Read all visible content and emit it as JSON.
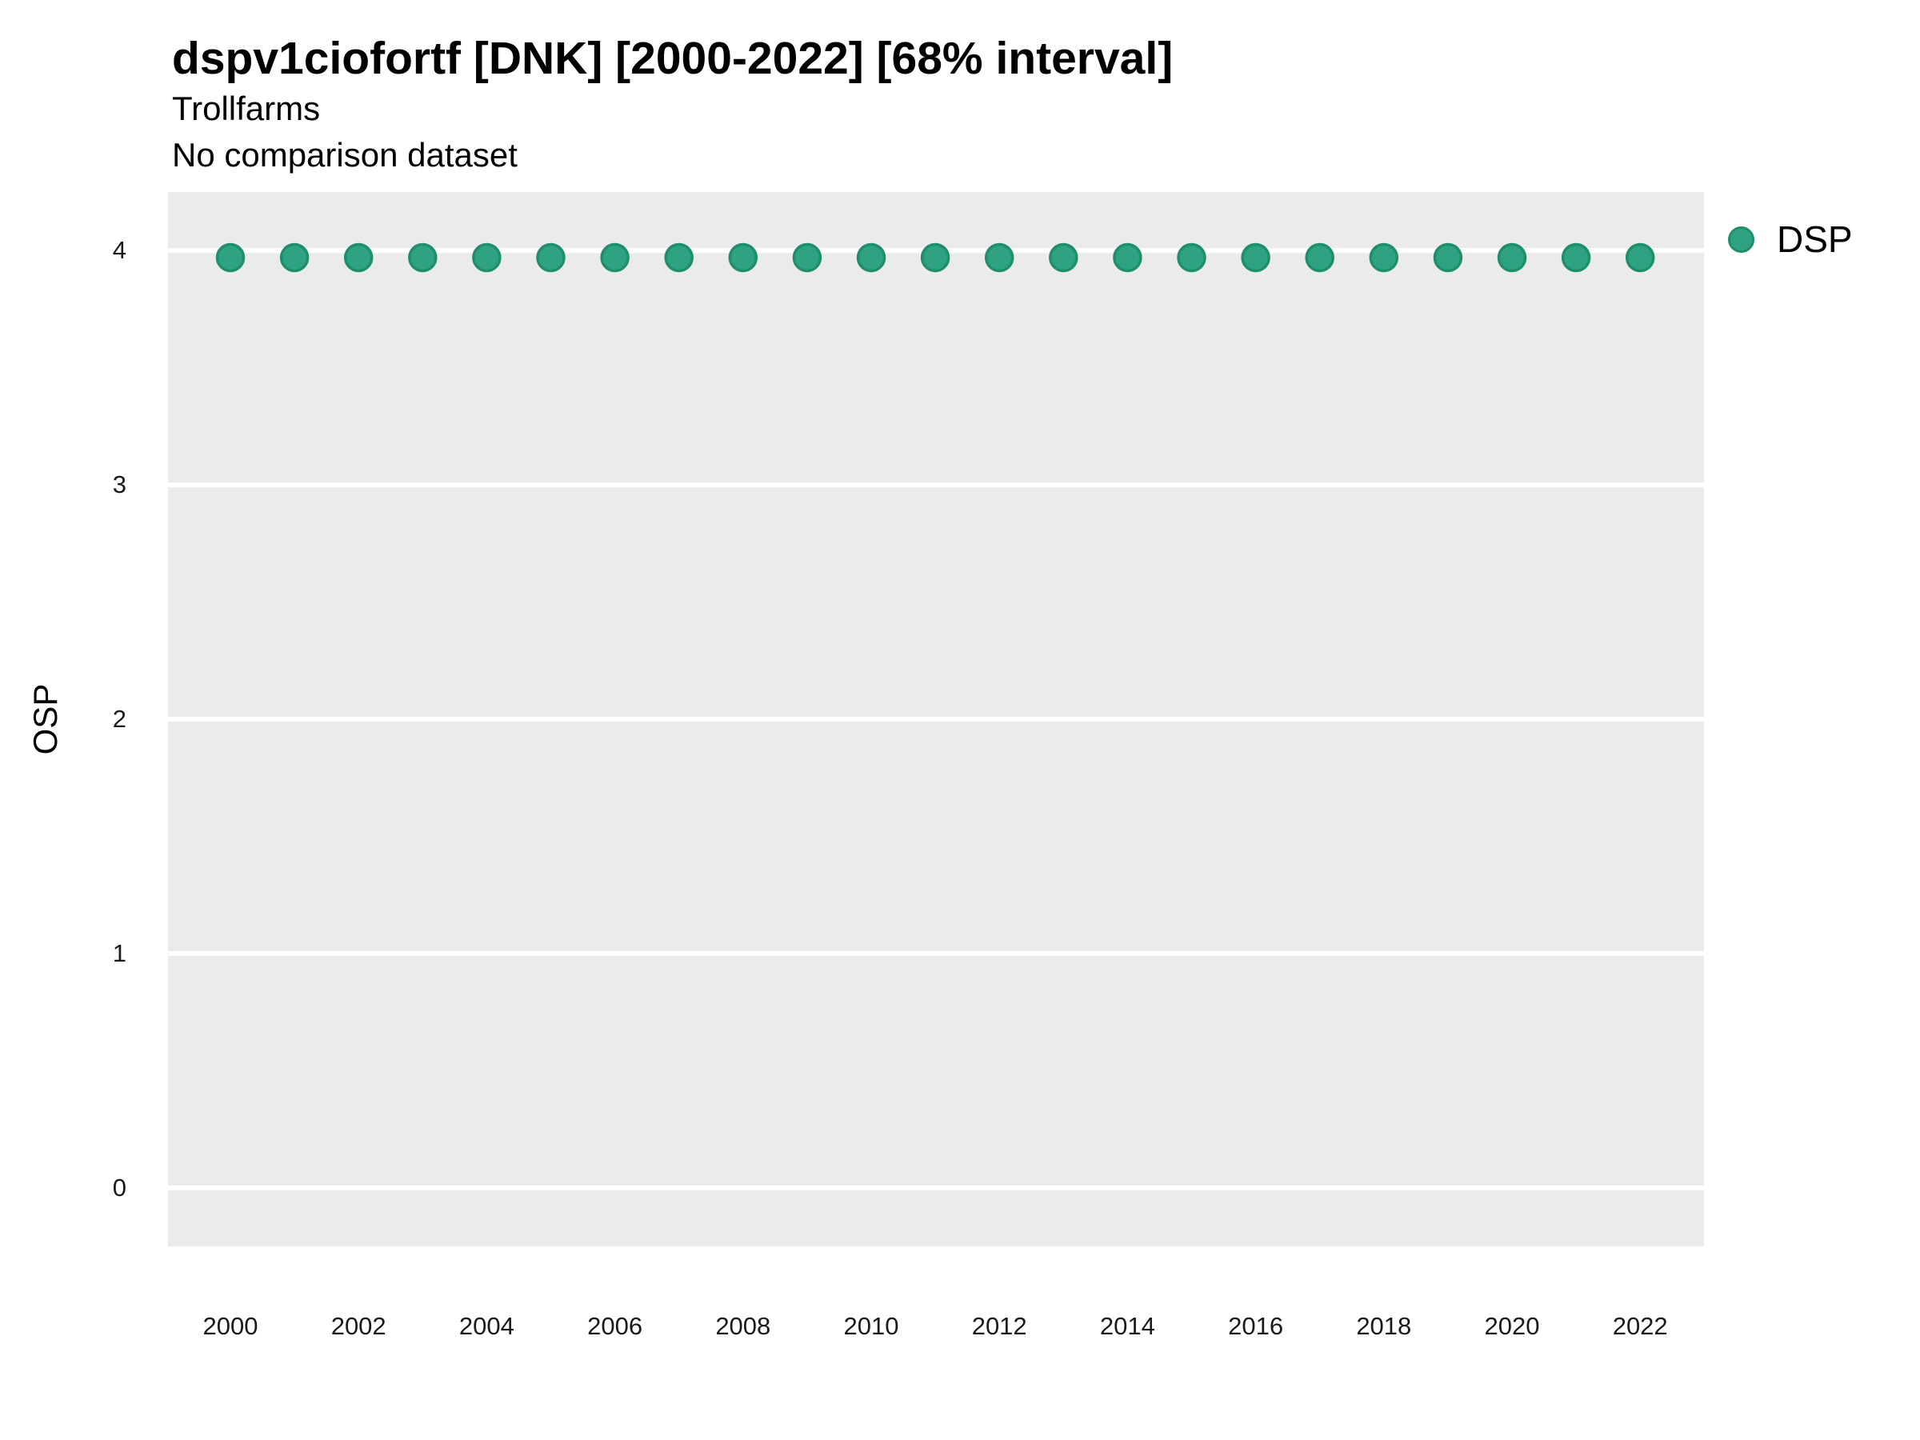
{
  "chart_data": {
    "type": "scatter",
    "title": "dspv1ciofortf [DNK] [2000-2022] [68% interval]",
    "subtitle": "Trollfarms",
    "note": "No comparison dataset",
    "xlabel": "",
    "ylabel": "OSP",
    "x": [
      2000,
      2001,
      2002,
      2003,
      2004,
      2005,
      2006,
      2007,
      2008,
      2009,
      2010,
      2011,
      2012,
      2013,
      2014,
      2015,
      2016,
      2017,
      2018,
      2019,
      2020,
      2021,
      2022
    ],
    "series": [
      {
        "name": "DSP",
        "values": [
          3.97,
          3.97,
          3.97,
          3.97,
          3.97,
          3.97,
          3.97,
          3.97,
          3.97,
          3.97,
          3.97,
          3.97,
          3.97,
          3.97,
          3.97,
          3.97,
          3.97,
          3.97,
          3.97,
          3.97,
          3.97,
          3.97,
          3.97
        ]
      }
    ],
    "ylim": [
      -0.25,
      4.25
    ],
    "yticks": [
      0,
      1,
      2,
      3,
      4
    ],
    "xticks": [
      2000,
      2002,
      2004,
      2006,
      2008,
      2010,
      2012,
      2014,
      2016,
      2018,
      2020,
      2022
    ],
    "grid": "horizontal-major-only",
    "legend_position": "top-right",
    "colors": {
      "point_fill": "#2EA283",
      "point_stroke": "#1F8E6B",
      "panel_bg": "#EBEBEB",
      "gridline": "#FFFFFF",
      "text": "#000000",
      "tick_text": "#1A1A1A"
    }
  }
}
